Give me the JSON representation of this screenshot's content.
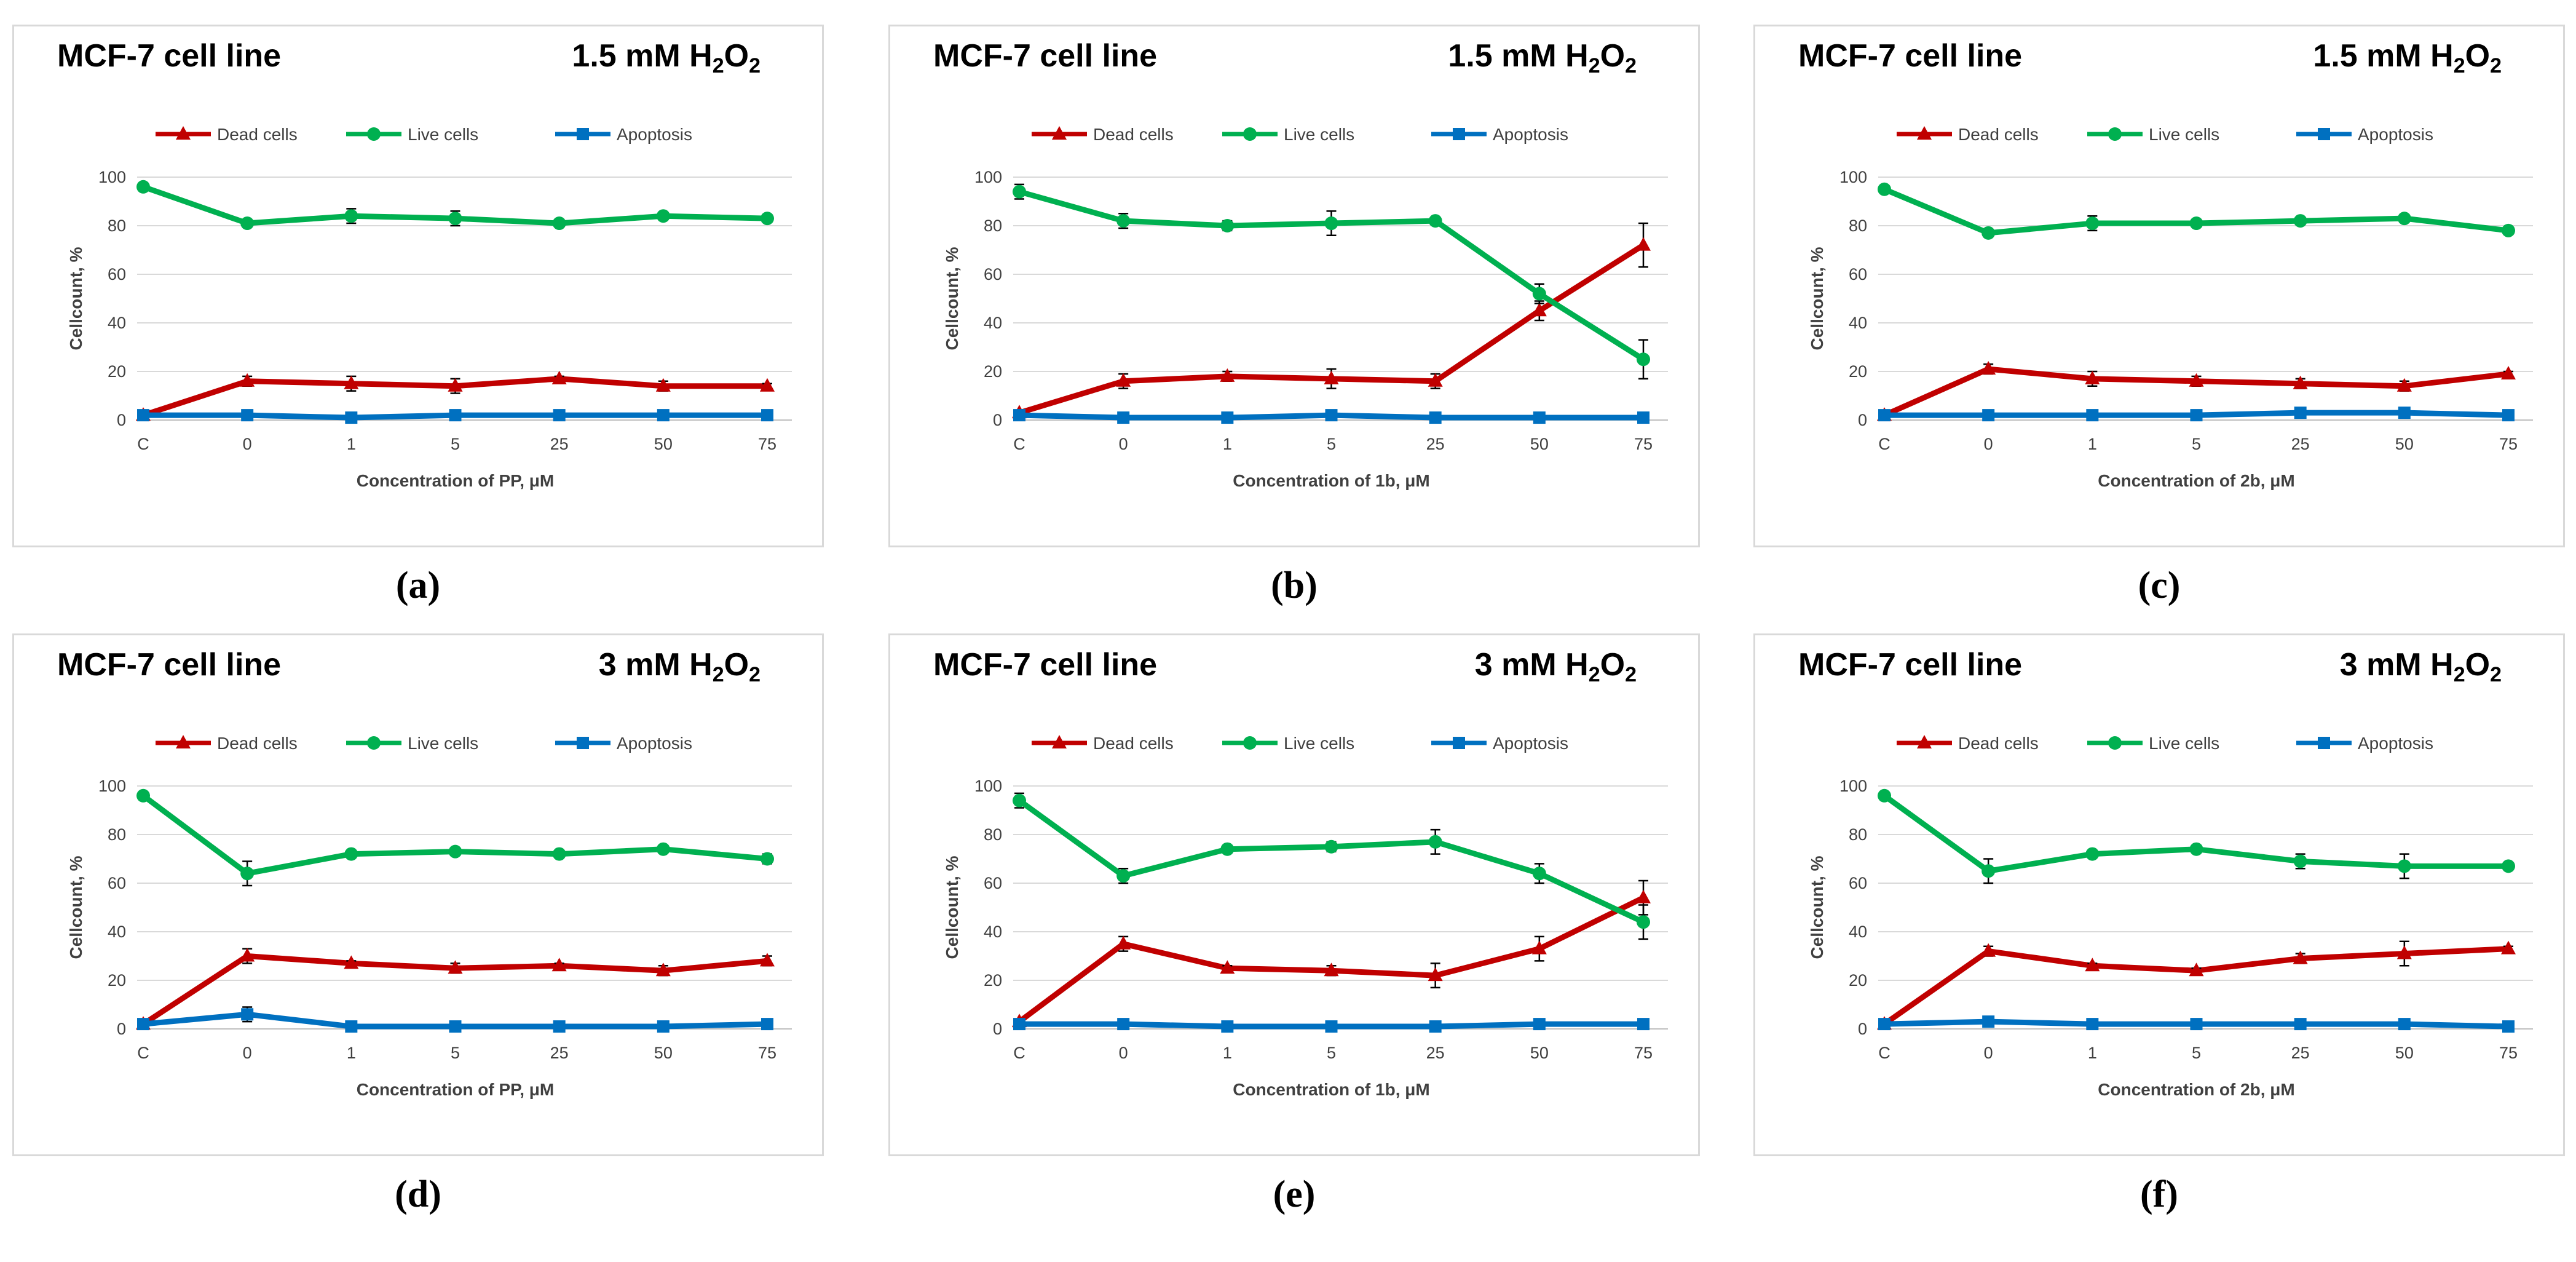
{
  "figure": {
    "colors": {
      "dead": "#c00000",
      "live": "#00b050",
      "apoptosis": "#0070c0",
      "grid": "#d9d9d9"
    },
    "legend": [
      "Dead cells",
      "Live cells",
      "Apoptosis"
    ],
    "captions": [
      "(a)",
      "(b)",
      "(c)",
      "(d)",
      "(e)",
      "(f)"
    ]
  },
  "chart_data": [
    {
      "type": "line",
      "title": "MCF-7 cell line",
      "condition": {
        "value": "1.5 mM H",
        "sub1": "2",
        "mid": "O",
        "sub2": "2"
      },
      "xlabel": "Concentration of PP, μM",
      "ylabel": "Cellcount, %",
      "categories": [
        "C",
        "0",
        "1",
        "5",
        "25",
        "50",
        "75"
      ],
      "ylim": [
        0,
        100
      ],
      "yticks": [
        0,
        20,
        40,
        60,
        80,
        100
      ],
      "grid": true,
      "legend_position": "top",
      "series": [
        {
          "name": "Dead cells",
          "values": [
            2,
            16,
            15,
            14,
            17,
            14,
            14
          ],
          "errors": [
            0,
            2,
            3,
            3,
            1,
            2,
            1
          ]
        },
        {
          "name": "Live cells",
          "values": [
            96,
            81,
            84,
            83,
            81,
            84,
            83
          ],
          "errors": [
            0,
            1,
            3,
            3,
            1,
            1,
            1
          ]
        },
        {
          "name": "Apoptosis",
          "values": [
            2,
            2,
            1,
            2,
            2,
            2,
            2
          ],
          "errors": [
            0,
            0,
            0,
            0,
            0,
            0,
            0
          ]
        }
      ]
    },
    {
      "type": "line",
      "title": "MCF-7 cell line",
      "condition": {
        "value": "1.5 mM  H",
        "sub1": "2",
        "mid": "O",
        "sub2": "2"
      },
      "xlabel": "Concentration of 1b, μM",
      "ylabel": "Cellcount, %",
      "categories": [
        "C",
        "0",
        "1",
        "5",
        "25",
        "50",
        "75"
      ],
      "ylim": [
        0,
        100
      ],
      "yticks": [
        0,
        20,
        40,
        60,
        80,
        100
      ],
      "grid": true,
      "legend_position": "top",
      "series": [
        {
          "name": "Dead cells",
          "values": [
            3,
            16,
            18,
            17,
            16,
            45,
            72
          ],
          "errors": [
            0,
            3,
            2,
            4,
            3,
            4,
            9
          ]
        },
        {
          "name": "Live cells",
          "values": [
            94,
            82,
            80,
            81,
            82,
            52,
            25
          ],
          "errors": [
            3,
            3,
            2,
            5,
            1,
            4,
            8
          ]
        },
        {
          "name": "Apoptosis",
          "values": [
            2,
            1,
            1,
            2,
            1,
            1,
            1
          ],
          "errors": [
            0,
            0,
            0,
            0,
            0,
            0,
            0
          ]
        }
      ]
    },
    {
      "type": "line",
      "title": "MCF-7 cell line",
      "condition": {
        "value": "1.5 mM H",
        "sub1": "2",
        "mid": "O",
        "sub2": "2"
      },
      "xlabel": "Concentration of 2b, μM",
      "ylabel": "Cellcount, %",
      "categories": [
        "C",
        "0",
        "1",
        "5",
        "25",
        "50",
        "75"
      ],
      "ylim": [
        0,
        100
      ],
      "yticks": [
        0,
        20,
        40,
        60,
        80,
        100
      ],
      "grid": true,
      "legend_position": "top",
      "series": [
        {
          "name": "Dead cells",
          "values": [
            2,
            21,
            17,
            16,
            15,
            14,
            19
          ],
          "errors": [
            0,
            2,
            3,
            2,
            2,
            2,
            1
          ]
        },
        {
          "name": "Live cells",
          "values": [
            95,
            77,
            81,
            81,
            82,
            83,
            78
          ],
          "errors": [
            0,
            1,
            3,
            1,
            1,
            1,
            1
          ]
        },
        {
          "name": "Apoptosis",
          "values": [
            2,
            2,
            2,
            2,
            3,
            3,
            2
          ],
          "errors": [
            0,
            0,
            0,
            0,
            0,
            0,
            0
          ]
        }
      ]
    },
    {
      "type": "line",
      "title": "MCF-7 cell line",
      "condition": {
        "value": "3 mM H",
        "sub1": "2",
        "mid": "O",
        "sub2": "2"
      },
      "xlabel": "Concentration of PP, μM",
      "ylabel": "Cellcount, %",
      "categories": [
        "C",
        "0",
        "1",
        "5",
        "25",
        "50",
        "75"
      ],
      "ylim": [
        0,
        100
      ],
      "yticks": [
        0,
        20,
        40,
        60,
        80,
        100
      ],
      "grid": true,
      "legend_position": "top",
      "series": [
        {
          "name": "Dead cells",
          "values": [
            2,
            30,
            27,
            25,
            26,
            24,
            28
          ],
          "errors": [
            0,
            3,
            1,
            2,
            1,
            2,
            2
          ]
        },
        {
          "name": "Live cells",
          "values": [
            96,
            64,
            72,
            73,
            72,
            74,
            70
          ],
          "errors": [
            0,
            5,
            1,
            1,
            1,
            1,
            2
          ]
        },
        {
          "name": "Apoptosis",
          "values": [
            2,
            6,
            1,
            1,
            1,
            1,
            2
          ],
          "errors": [
            0,
            3,
            0,
            0,
            0,
            0,
            0
          ]
        }
      ]
    },
    {
      "type": "line",
      "title": "MCF-7 cell line",
      "condition": {
        "value": "3 mM  H",
        "sub1": "2",
        "mid": "O",
        "sub2": "2"
      },
      "xlabel": "Concentration of 1b, μM",
      "ylabel": "Cellcount, %",
      "categories": [
        "C",
        "0",
        "1",
        "5",
        "25",
        "50",
        "75"
      ],
      "ylim": [
        0,
        100
      ],
      "yticks": [
        0,
        20,
        40,
        60,
        80,
        100
      ],
      "grid": true,
      "legend_position": "top",
      "series": [
        {
          "name": "Dead cells",
          "values": [
            3,
            35,
            25,
            24,
            22,
            33,
            54
          ],
          "errors": [
            0,
            3,
            1,
            2,
            5,
            5,
            7
          ]
        },
        {
          "name": "Live cells",
          "values": [
            94,
            63,
            74,
            75,
            77,
            64,
            44
          ],
          "errors": [
            3,
            3,
            1,
            2,
            5,
            4,
            7
          ]
        },
        {
          "name": "Apoptosis",
          "values": [
            2,
            2,
            1,
            1,
            1,
            2,
            2
          ],
          "errors": [
            0,
            0,
            0,
            0,
            0,
            0,
            0
          ]
        }
      ]
    },
    {
      "type": "line",
      "title": "MCF-7 cell line",
      "condition": {
        "value": "3 mM H",
        "sub1": "2",
        "mid": "O",
        "sub2": "2"
      },
      "xlabel": "Concentration of 2b, μM",
      "ylabel": "Cellcount, %",
      "categories": [
        "C",
        "0",
        "1",
        "5",
        "25",
        "50",
        "75"
      ],
      "ylim": [
        0,
        100
      ],
      "yticks": [
        0,
        20,
        40,
        60,
        80,
        100
      ],
      "grid": true,
      "legend_position": "top",
      "series": [
        {
          "name": "Dead cells",
          "values": [
            2,
            32,
            26,
            24,
            29,
            31,
            33
          ],
          "errors": [
            0,
            2,
            1,
            1,
            2,
            5,
            1
          ]
        },
        {
          "name": "Live cells",
          "values": [
            96,
            65,
            72,
            74,
            69,
            67,
            67
          ],
          "errors": [
            0,
            5,
            1,
            1,
            3,
            5,
            1
          ]
        },
        {
          "name": "Apoptosis",
          "values": [
            2,
            3,
            2,
            2,
            2,
            2,
            1
          ],
          "errors": [
            0,
            2,
            0,
            0,
            0,
            0,
            0
          ]
        }
      ]
    }
  ]
}
